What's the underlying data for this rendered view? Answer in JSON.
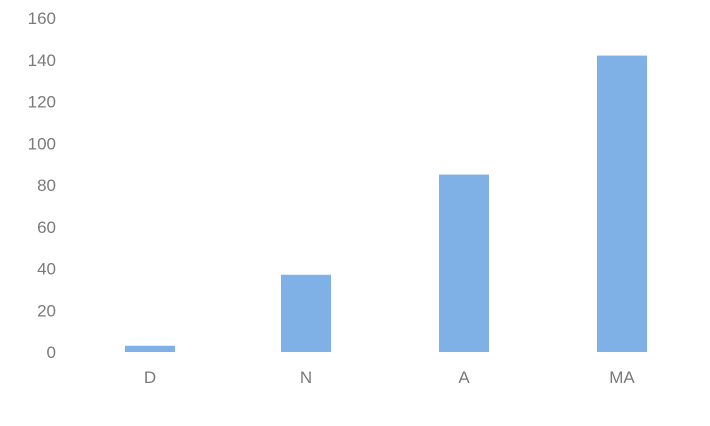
{
  "chart_data": {
    "type": "bar",
    "categories": [
      "D",
      "N",
      "A",
      "MA"
    ],
    "values": [
      3,
      37,
      85,
      142
    ],
    "title": "",
    "xlabel": "",
    "ylabel": "",
    "ylim": [
      0,
      160
    ],
    "yticks": [
      0,
      20,
      40,
      60,
      80,
      100,
      120,
      140,
      160
    ],
    "grid": false,
    "legend": "none",
    "bar_color": "#7fb1e6"
  }
}
